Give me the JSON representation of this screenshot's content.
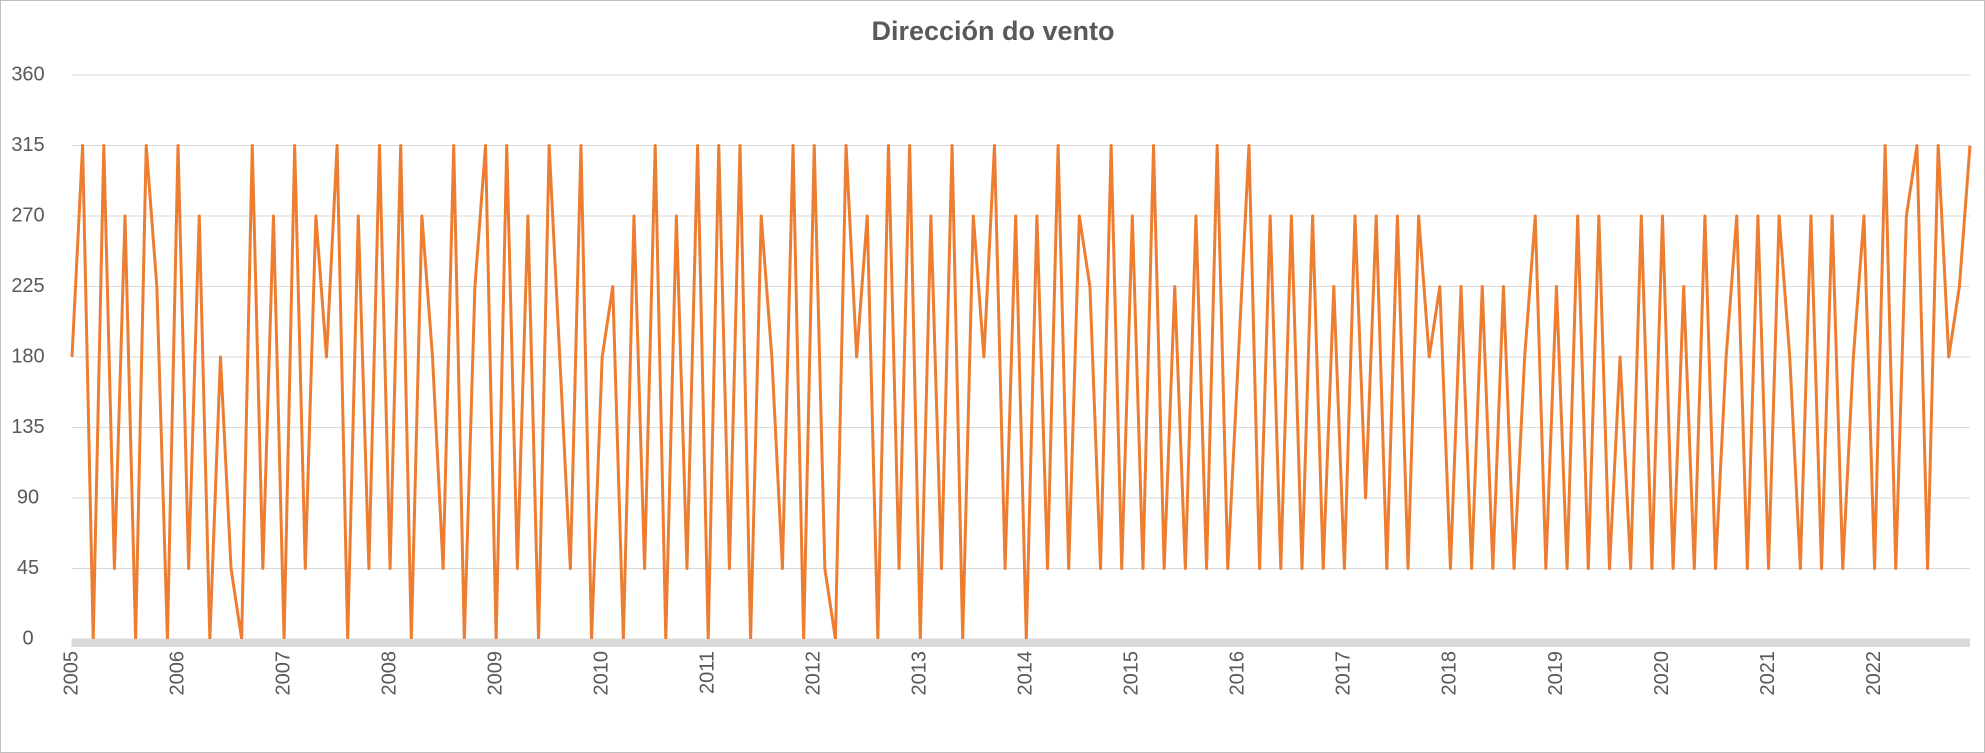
{
  "chart_data": {
    "type": "line",
    "title": "Dirección do vento",
    "x": [
      2005.0,
      2005.1,
      2005.2,
      2005.3,
      2005.4,
      2005.5,
      2005.6,
      2005.7,
      2005.8,
      2005.9,
      2006.0,
      2006.1,
      2006.2,
      2006.3,
      2006.4,
      2006.5,
      2006.6,
      2006.7,
      2006.8,
      2006.9,
      2007.0,
      2007.1,
      2007.2,
      2007.3,
      2007.4,
      2007.5,
      2007.6,
      2007.7,
      2007.8,
      2007.9,
      2008.0,
      2008.1,
      2008.2,
      2008.3,
      2008.4,
      2008.5,
      2008.6,
      2008.7,
      2008.8,
      2008.9,
      2009.0,
      2009.1,
      2009.2,
      2009.3,
      2009.4,
      2009.5,
      2009.6,
      2009.7,
      2009.8,
      2009.9,
      2010.0,
      2010.1,
      2010.2,
      2010.3,
      2010.4,
      2010.5,
      2010.6,
      2010.7,
      2010.8,
      2010.9,
      2011.0,
      2011.1,
      2011.2,
      2011.3,
      2011.4,
      2011.5,
      2011.6,
      2011.7,
      2011.8,
      2011.9,
      2012.0,
      2012.1,
      2012.2,
      2012.3,
      2012.4,
      2012.5,
      2012.6,
      2012.7,
      2012.8,
      2012.9,
      2013.0,
      2013.1,
      2013.2,
      2013.3,
      2013.4,
      2013.5,
      2013.6,
      2013.7,
      2013.8,
      2013.9,
      2014.0,
      2014.1,
      2014.2,
      2014.3,
      2014.4,
      2014.5,
      2014.6,
      2014.7,
      2014.8,
      2014.9,
      2015.0,
      2015.1,
      2015.2,
      2015.3,
      2015.4,
      2015.5,
      2015.6,
      2015.7,
      2015.8,
      2015.9,
      2016.0,
      2016.1,
      2016.2,
      2016.3,
      2016.4,
      2016.5,
      2016.6,
      2016.7,
      2016.8,
      2016.9,
      2017.0,
      2017.1,
      2017.2,
      2017.3,
      2017.4,
      2017.5,
      2017.6,
      2017.7,
      2017.8,
      2017.9,
      2018.0,
      2018.1,
      2018.2,
      2018.3,
      2018.4,
      2018.5,
      2018.6,
      2018.7,
      2018.8,
      2018.9,
      2019.0,
      2019.1,
      2019.2,
      2019.3,
      2019.4,
      2019.5,
      2019.6,
      2019.7,
      2019.8,
      2019.9,
      2020.0,
      2020.1,
      2020.2,
      2020.3,
      2020.4,
      2020.5,
      2020.6,
      2020.7,
      2020.8,
      2020.9,
      2021.0,
      2021.1,
      2021.2,
      2021.3,
      2021.4,
      2021.5,
      2021.6,
      2021.7,
      2021.8,
      2021.9,
      2022.0,
      2022.1,
      2022.2,
      2022.3,
      2022.4,
      2022.5,
      2022.6,
      2022.7,
      2022.8,
      2022.9
    ],
    "series": [
      {
        "name": "Dirección do vento",
        "color": "#ed7d31",
        "values": [
          180,
          315,
          0,
          315,
          45,
          270,
          0,
          315,
          225,
          0,
          315,
          45,
          270,
          0,
          180,
          45,
          0,
          315,
          45,
          270,
          0,
          315,
          45,
          270,
          180,
          315,
          0,
          270,
          45,
          315,
          45,
          315,
          0,
          270,
          180,
          45,
          315,
          0,
          225,
          315,
          0,
          315,
          45,
          270,
          0,
          315,
          180,
          45,
          315,
          0,
          180,
          225,
          0,
          270,
          45,
          315,
          0,
          270,
          45,
          315,
          0,
          315,
          45,
          315,
          0,
          270,
          180,
          45,
          315,
          0,
          315,
          45,
          0,
          315,
          180,
          270,
          0,
          315,
          45,
          315,
          0,
          270,
          45,
          315,
          0,
          270,
          180,
          315,
          45,
          270,
          0,
          270,
          45,
          315,
          45,
          270,
          225,
          45,
          315,
          45,
          270,
          45,
          315,
          45,
          225,
          45,
          270,
          45,
          315,
          45,
          180,
          315,
          45,
          270,
          45,
          270,
          45,
          270,
          45,
          225,
          45,
          270,
          90,
          270,
          45,
          270,
          45,
          270,
          180,
          225,
          45,
          225,
          45,
          225,
          45,
          225,
          45,
          180,
          270,
          45,
          225,
          45,
          270,
          45,
          270,
          45,
          180,
          45,
          270,
          45,
          270,
          45,
          225,
          45,
          270,
          45,
          180,
          270,
          45,
          270,
          45,
          270,
          180,
          45,
          270,
          45,
          270,
          45,
          180,
          270,
          45,
          315,
          45,
          270,
          315,
          45,
          315,
          180,
          225,
          315
        ]
      }
    ],
    "xlim": [
      2005,
      2022.9
    ],
    "xticks": [
      2005,
      2006,
      2007,
      2008,
      2009,
      2010,
      2011,
      2012,
      2013,
      2014,
      2015,
      2016,
      2017,
      2018,
      2019,
      2020,
      2021,
      2022
    ],
    "ylim": [
      0,
      360
    ],
    "yticks": [
      0,
      45,
      90,
      135,
      180,
      225,
      270,
      315,
      360
    ],
    "grid": true
  }
}
